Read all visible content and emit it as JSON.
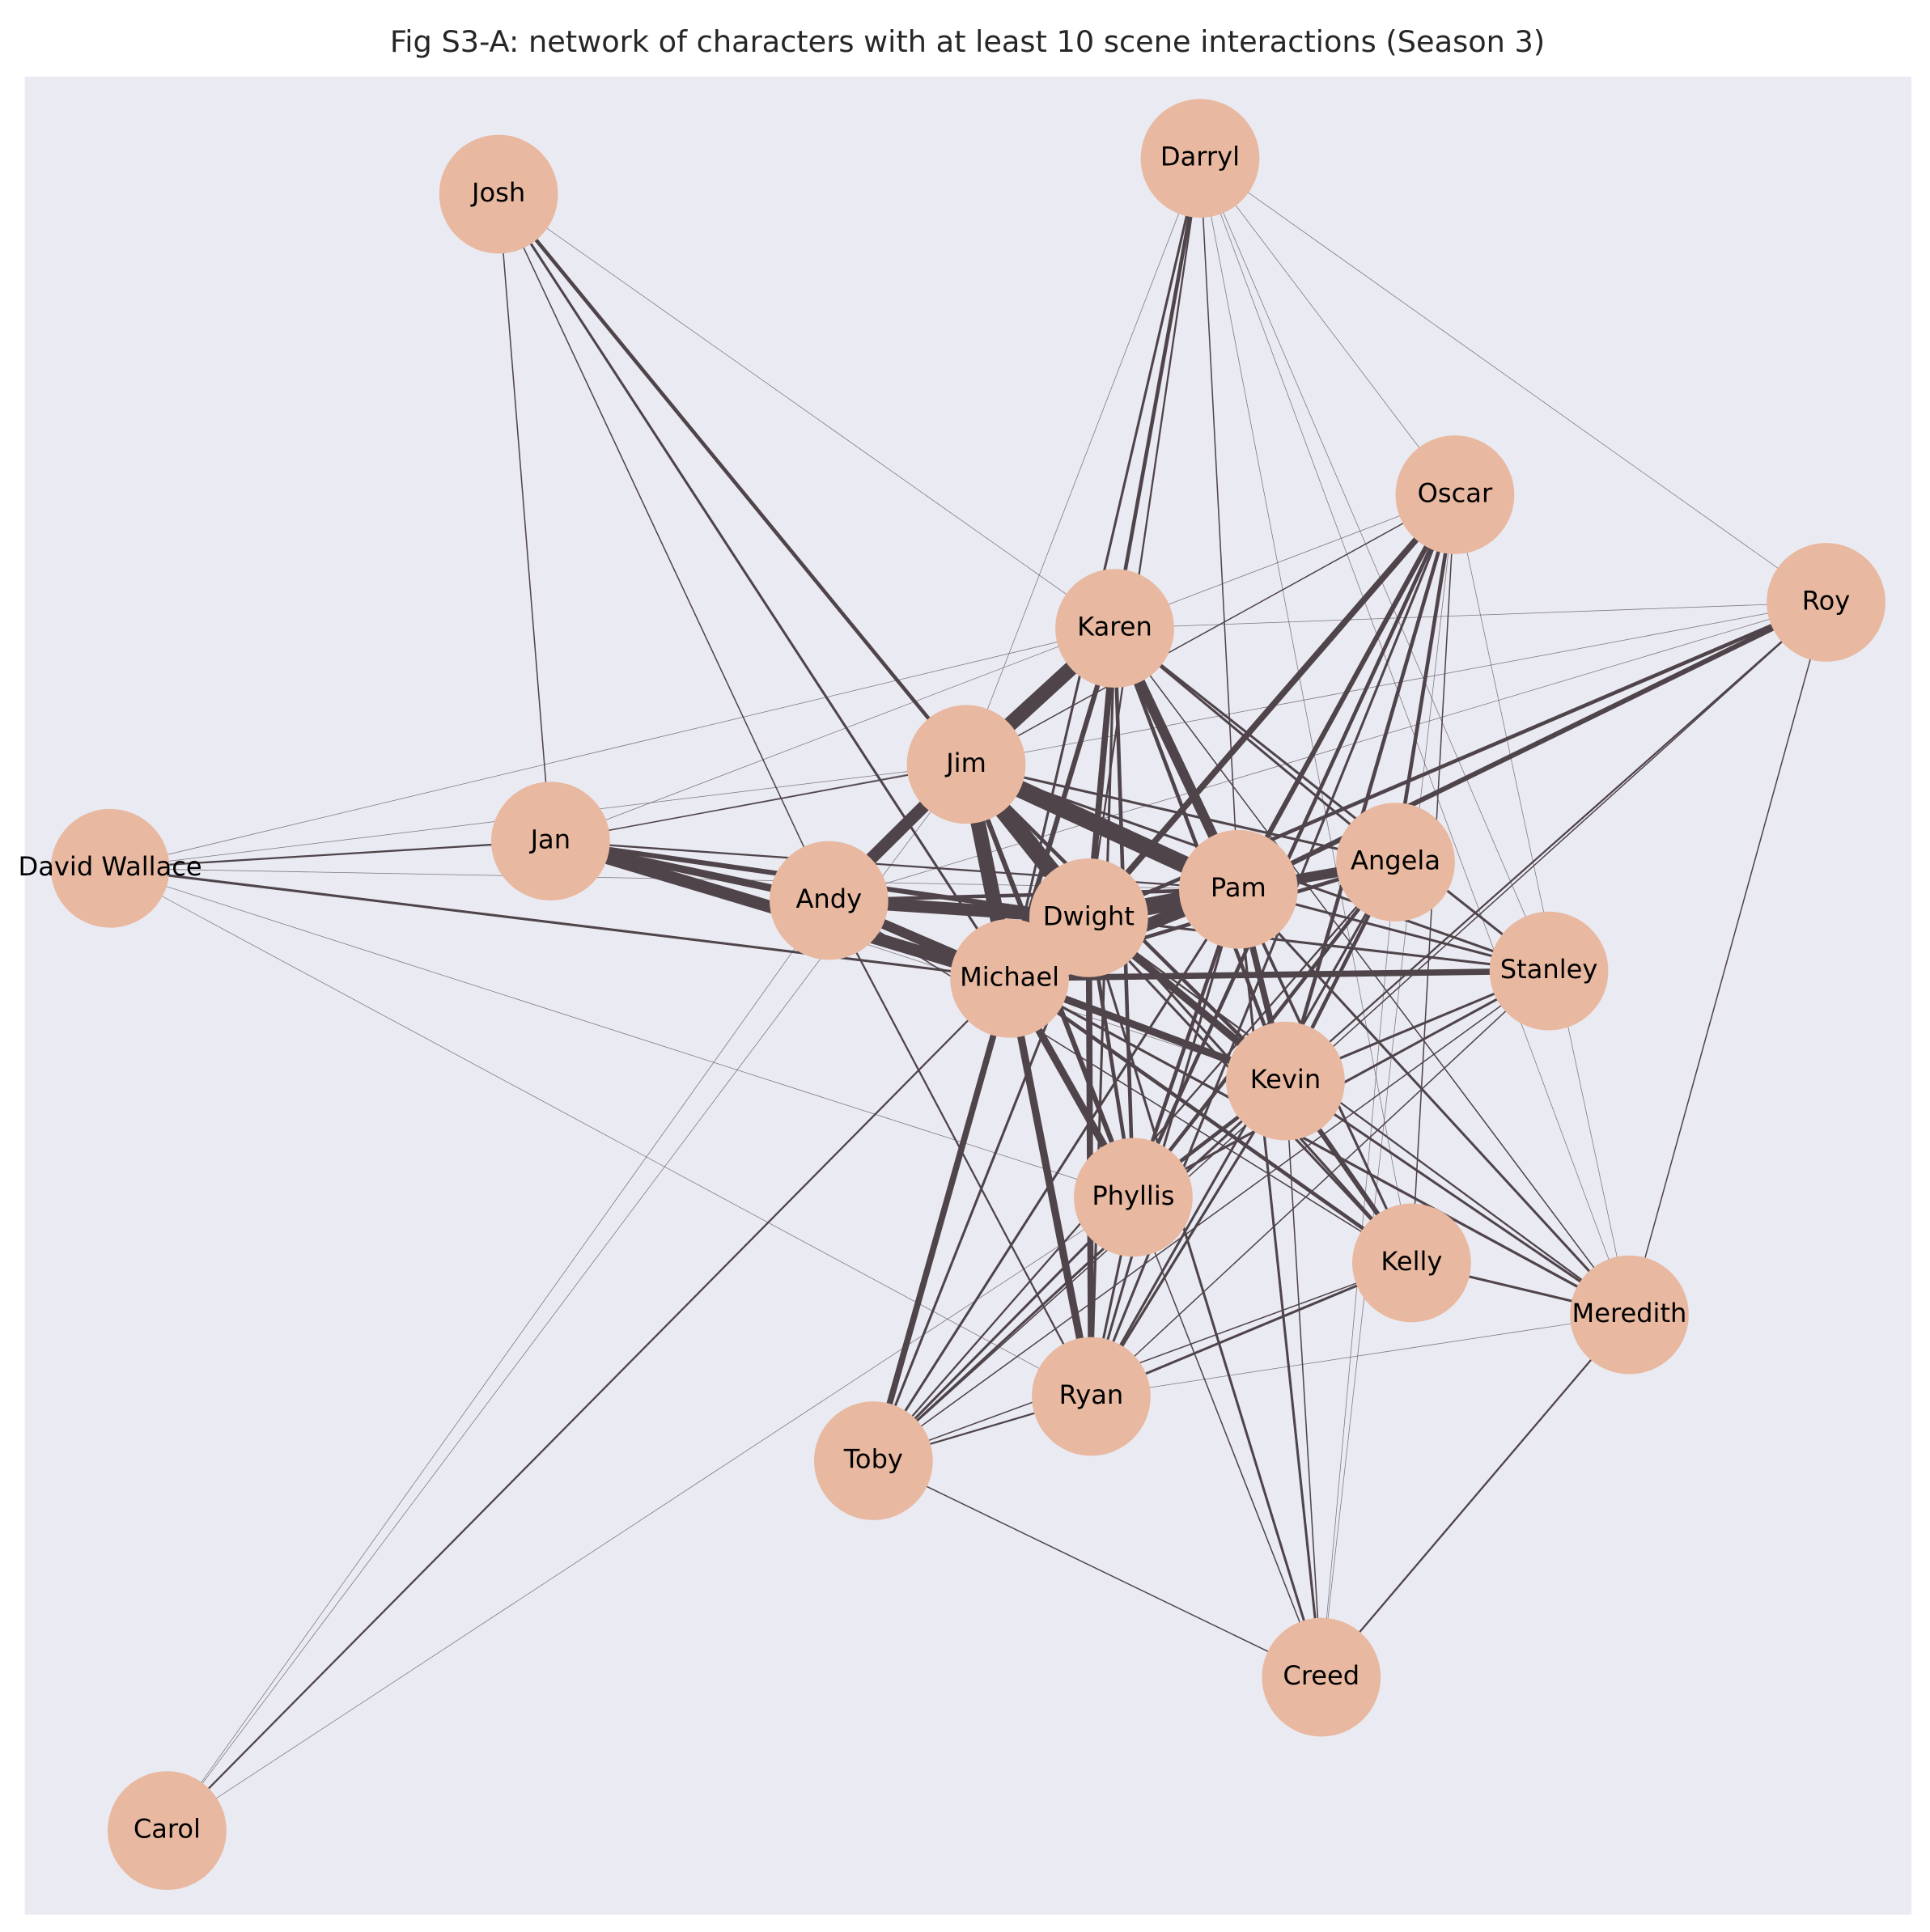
{
  "title": "Fig S3-A: network of characters with at least 10 scene interactions (Season 3)",
  "nodes": [
    "Darryl",
    "Josh",
    "Oscar",
    "Roy",
    "Karen",
    "Jim",
    "Jan",
    "David Wallace",
    "Andy",
    "Dwight",
    "Pam",
    "Angela",
    "Stanley",
    "Michael",
    "Kevin",
    "Phyllis",
    "Kelly",
    "Meredith",
    "Ryan",
    "Toby",
    "Creed",
    "Carol"
  ]
}
